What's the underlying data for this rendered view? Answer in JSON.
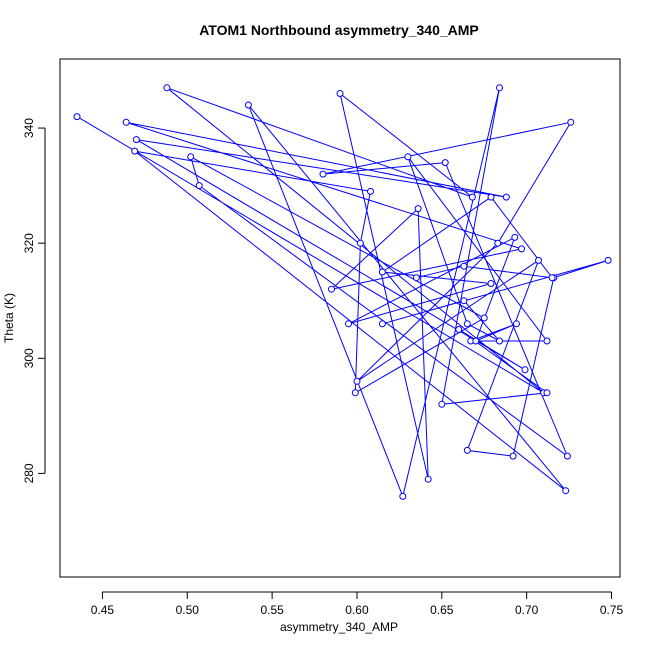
{
  "chart_data": {
    "type": "line",
    "title": "ATOM1 Northbound asymmetry_340_AMP",
    "xlabel": "asymmetry_340_AMP",
    "ylabel": "Theta (K)",
    "xlim": [
      0.425,
      0.755
    ],
    "ylim": [
      262,
      352
    ],
    "xticks": [
      "0.45",
      "0.50",
      "0.55",
      "0.60",
      "0.65",
      "0.70",
      "0.75"
    ],
    "xtick_values": [
      0.45,
      0.5,
      0.55,
      0.6,
      0.65,
      0.7,
      0.75
    ],
    "yticks": [
      "280",
      "300",
      "320",
      "340"
    ],
    "ytick_values": [
      280,
      300,
      320,
      340
    ],
    "grid": false,
    "series_color": "#0000ff",
    "markers": "open-circle",
    "x": [
      0.435,
      0.71,
      0.488,
      0.668,
      0.59,
      0.642,
      0.636,
      0.585,
      0.697,
      0.464,
      0.688,
      0.47,
      0.699,
      0.66,
      0.712,
      0.65,
      0.684,
      0.627,
      0.536,
      0.723,
      0.469,
      0.608,
      0.602,
      0.599,
      0.675,
      0.502,
      0.507,
      0.724,
      0.652,
      0.58,
      0.726,
      0.683,
      0.6,
      0.707,
      0.665,
      0.692,
      0.716,
      0.748,
      0.615,
      0.663,
      0.684,
      0.665,
      0.63,
      0.712,
      0.667,
      0.694,
      0.67,
      0.693,
      0.595,
      0.679,
      0.615,
      0.679,
      0.715,
      0.663,
      0.635
    ],
    "y": [
      342,
      294,
      347,
      328,
      346,
      279,
      326,
      312,
      319,
      341,
      328,
      338,
      298,
      305,
      294,
      292,
      347,
      276,
      344,
      277,
      336,
      329,
      320,
      294,
      307,
      335,
      330,
      283,
      334,
      332,
      341,
      320,
      296,
      317,
      284,
      283,
      314,
      317,
      306,
      310,
      303,
      306,
      335,
      303,
      303,
      306,
      303,
      321,
      306,
      313,
      315,
      328,
      314,
      316,
      314
    ]
  }
}
